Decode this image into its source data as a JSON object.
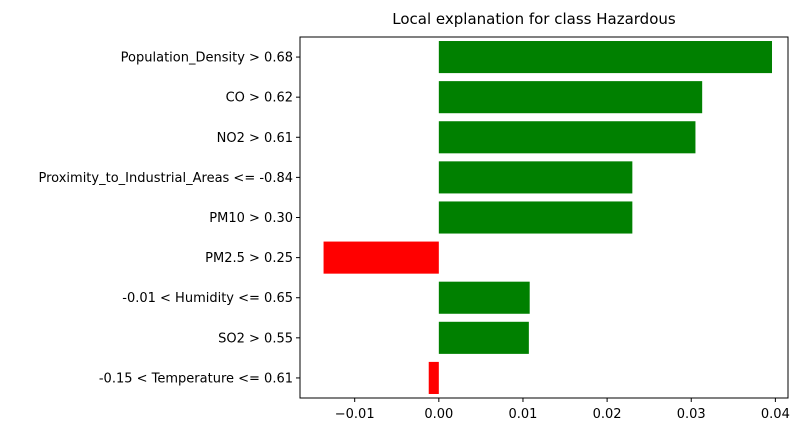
{
  "chart_data": {
    "type": "bar",
    "orientation": "horizontal",
    "title": "Local explanation for class Hazardous",
    "xlabel": "",
    "ylabel": "",
    "xlim": [
      -0.0165,
      0.0415
    ],
    "xticks": [
      -0.01,
      0.0,
      0.01,
      0.02,
      0.03,
      0.04
    ],
    "xtick_labels": [
      "−0.01",
      "0.00",
      "0.01",
      "0.02",
      "0.03",
      "0.04"
    ],
    "grid": false,
    "legend": "none",
    "positive_color": "#008000",
    "negative_color": "#ff0000",
    "categories": [
      "Population_Density > 0.68",
      "CO > 0.62",
      "NO2 > 0.61",
      "Proximity_to_Industrial_Areas <= -0.84",
      "PM10 > 0.30",
      "PM2.5 > 0.25",
      "-0.01 < Humidity <= 0.65",
      "SO2 > 0.55",
      "-0.15 < Temperature <= 0.61"
    ],
    "values": [
      0.0396,
      0.0313,
      0.0305,
      0.023,
      0.023,
      -0.0137,
      0.0108,
      0.0107,
      -0.0012
    ]
  }
}
